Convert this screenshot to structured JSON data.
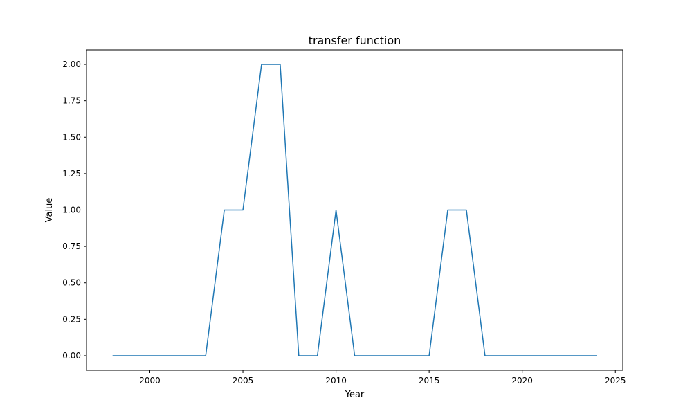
{
  "chart_data": {
    "type": "line",
    "title": "transfer function",
    "xlabel": "Year",
    "ylabel": "Value",
    "xlim": [
      1996.6,
      2025.4
    ],
    "ylim": [
      -0.1,
      2.1
    ],
    "xticks": [
      2000,
      2005,
      2010,
      2015,
      2020,
      2025
    ],
    "yticks": [
      0.0,
      0.25,
      0.5,
      0.75,
      1.0,
      1.25,
      1.5,
      1.75,
      2.0
    ],
    "xtick_labels": [
      "2000",
      "2005",
      "2010",
      "2015",
      "2020",
      "2025"
    ],
    "ytick_labels": [
      "0.00",
      "0.25",
      "0.50",
      "0.75",
      "1.00",
      "1.25",
      "1.50",
      "1.75",
      "2.00"
    ],
    "grid": false,
    "series": [
      {
        "color": "#1f77b4",
        "x": [
          1998,
          1999,
          2000,
          2001,
          2002,
          2003,
          2004,
          2005,
          2006,
          2007,
          2008,
          2009,
          2010,
          2011,
          2012,
          2013,
          2014,
          2015,
          2016,
          2017,
          2018,
          2019,
          2020,
          2021,
          2022,
          2023,
          2024
        ],
        "values": [
          0,
          0,
          0,
          0,
          0,
          0,
          1,
          1,
          2,
          2,
          0,
          0,
          1,
          0,
          0,
          0,
          0,
          0,
          1,
          1,
          0,
          0,
          0,
          0,
          0,
          0,
          0
        ]
      }
    ]
  }
}
